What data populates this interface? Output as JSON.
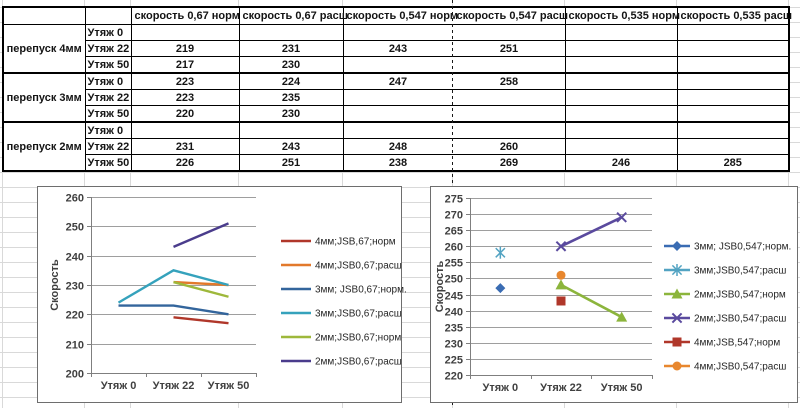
{
  "table": {
    "col_headers": [
      "",
      "",
      "скорость 0,67 норм",
      "скорость 0,67 расш",
      "скорость 0,547 норм",
      "скорость 0,547 расш",
      "скорость 0,535 норм",
      "скорость 0,535 расш"
    ],
    "groups": [
      {
        "label": "перепуск 4мм",
        "rows": [
          {
            "label": "Утяж 0",
            "values": [
              "",
              "",
              "",
              "",
              "",
              ""
            ]
          },
          {
            "label": "Утяж 22",
            "values": [
              "219",
              "231",
              "243",
              "251",
              "",
              ""
            ]
          },
          {
            "label": "Утяж 50",
            "values": [
              "217",
              "230",
              "",
              "",
              "",
              ""
            ]
          }
        ]
      },
      {
        "label": "перепуск 3мм",
        "rows": [
          {
            "label": "Утяж 0",
            "values": [
              "223",
              "224",
              "247",
              "258",
              "",
              ""
            ]
          },
          {
            "label": "Утяж 22",
            "values": [
              "223",
              "235",
              "",
              "",
              "",
              ""
            ]
          },
          {
            "label": "Утяж 50",
            "values": [
              "220",
              "230",
              "",
              "",
              "",
              ""
            ]
          }
        ]
      },
      {
        "label": "перепуск 2мм",
        "rows": [
          {
            "label": "Утяж 0",
            "values": [
              "",
              "",
              "",
              "",
              "",
              ""
            ]
          },
          {
            "label": "Утяж 22",
            "values": [
              "231",
              "243",
              "248",
              "260",
              "",
              ""
            ]
          },
          {
            "label": "Утяж 50",
            "values": [
              "226",
              "251",
              "238",
              "269",
              "246",
              "285"
            ]
          }
        ]
      }
    ]
  },
  "chart_data": [
    {
      "type": "line",
      "title": "",
      "ylabel": "Скорость",
      "xlabel": "",
      "categories": [
        "Утяж 0",
        "Утяж 22",
        "Утяж 50"
      ],
      "ylim": [
        200,
        260
      ],
      "ytick": 10,
      "grid": true,
      "legend_position": "right",
      "grid_color": "#9e9e9e",
      "axis_color": "#7f7f7f",
      "series": [
        {
          "name": "4мм;JSB,67;норм",
          "color": "#b0372a",
          "marker": "none",
          "values": [
            null,
            219,
            217
          ]
        },
        {
          "name": "4мм;JSB0,67;расш",
          "color": "#e2792b",
          "marker": "none",
          "values": [
            null,
            231,
            230
          ]
        },
        {
          "name": "3мм; JSB0,67;норм.",
          "color": "#33659c",
          "marker": "none",
          "values": [
            223,
            223,
            220
          ]
        },
        {
          "name": "3мм;JSB0,67;расш",
          "color": "#35a2bc",
          "marker": "none",
          "values": [
            224,
            235,
            230
          ]
        },
        {
          "name": "2мм;JSB0,67;норм",
          "color": "#9eb83b",
          "marker": "none",
          "values": [
            null,
            231,
            226
          ]
        },
        {
          "name": "2мм;JSB0,67;расш",
          "color": "#4a3c8c",
          "marker": "none",
          "values": [
            null,
            243,
            251
          ]
        }
      ]
    },
    {
      "type": "line",
      "title": "",
      "ylabel": "Скорость",
      "xlabel": "",
      "categories": [
        "Утяж 0",
        "Утяж 22",
        "Утяж 50"
      ],
      "ylim": [
        220,
        275
      ],
      "ytick": 5,
      "grid": true,
      "legend_position": "right",
      "grid_color": "#9e9e9e",
      "axis_color": "#7f7f7f",
      "series": [
        {
          "name": "3мм; JSB0,547;норм.",
          "color": "#3a6cb3",
          "marker": "diamond",
          "values": [
            247,
            null,
            null
          ]
        },
        {
          "name": "3мм;JSB0,547;расш",
          "color": "#52a3c2",
          "marker": "asterisk",
          "values": [
            258,
            null,
            null
          ]
        },
        {
          "name": "2мм;JSB0,547;норм",
          "color": "#8cb53c",
          "marker": "triangle",
          "values": [
            null,
            248,
            238
          ]
        },
        {
          "name": "2мм;JSB0,547;расш",
          "color": "#5a4a9e",
          "marker": "x",
          "values": [
            null,
            260,
            269
          ]
        },
        {
          "name": "4мм;JSB,547;норм",
          "color": "#b0372a",
          "marker": "square",
          "values": [
            null,
            243,
            null
          ]
        },
        {
          "name": "4мм;JSB0,547;расш",
          "color": "#e8872e",
          "marker": "circle",
          "values": [
            null,
            251,
            null
          ]
        }
      ]
    }
  ]
}
